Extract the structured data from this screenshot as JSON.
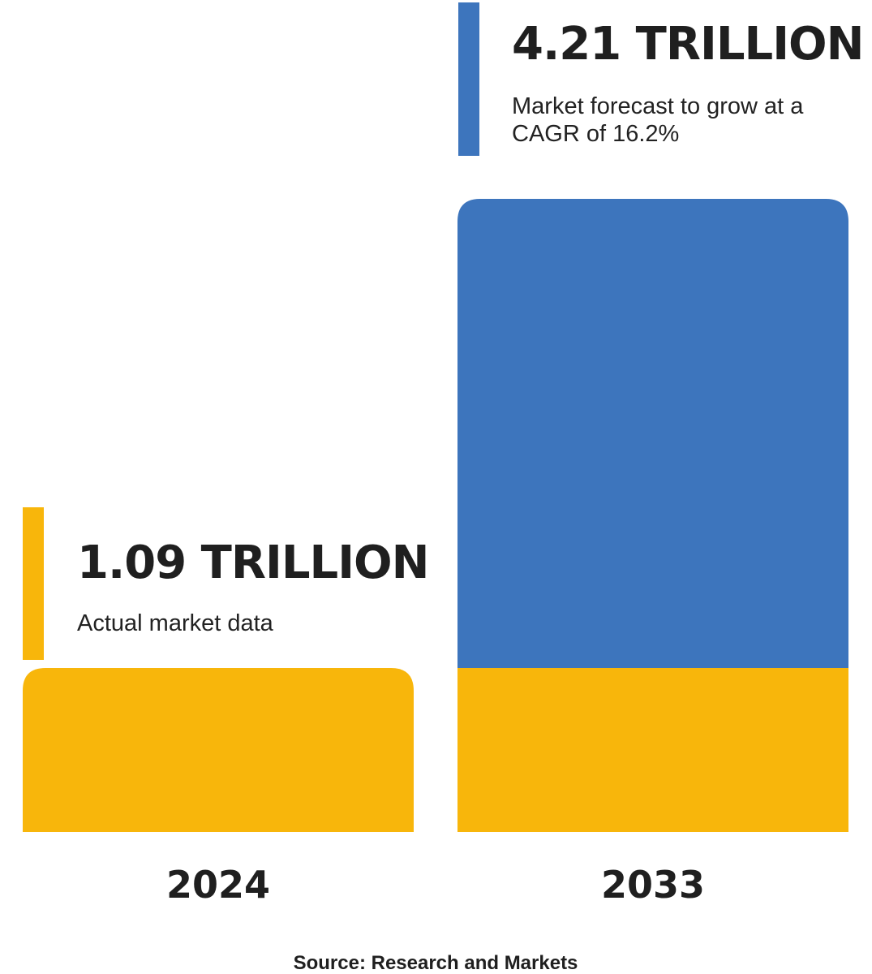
{
  "colors": {
    "actual": "#F8B60B",
    "forecast": "#3D75BD",
    "text": "#1F1F1F"
  },
  "chart_data": {
    "type": "bar",
    "categories": [
      "2024",
      "2033"
    ],
    "series": [
      {
        "key": "actual",
        "values": [
          1.09,
          1.09
        ]
      },
      {
        "key": "forecast",
        "values": [
          0,
          3.12
        ]
      }
    ],
    "totals": [
      1.09,
      4.21
    ],
    "unit": "trillion",
    "ylim": [
      0,
      4.21
    ],
    "grid": false,
    "callouts": [
      {
        "category": "2024",
        "value_text": "1.09 TRILLION",
        "description": [
          "Actual market data"
        ],
        "color": "actual"
      },
      {
        "category": "2033",
        "value_text": "4.21 TRILLION",
        "description": [
          "Market forecast to grow at a",
          "CAGR of 16.2%"
        ],
        "color": "forecast"
      }
    ],
    "source": "Source: Research and Markets"
  }
}
